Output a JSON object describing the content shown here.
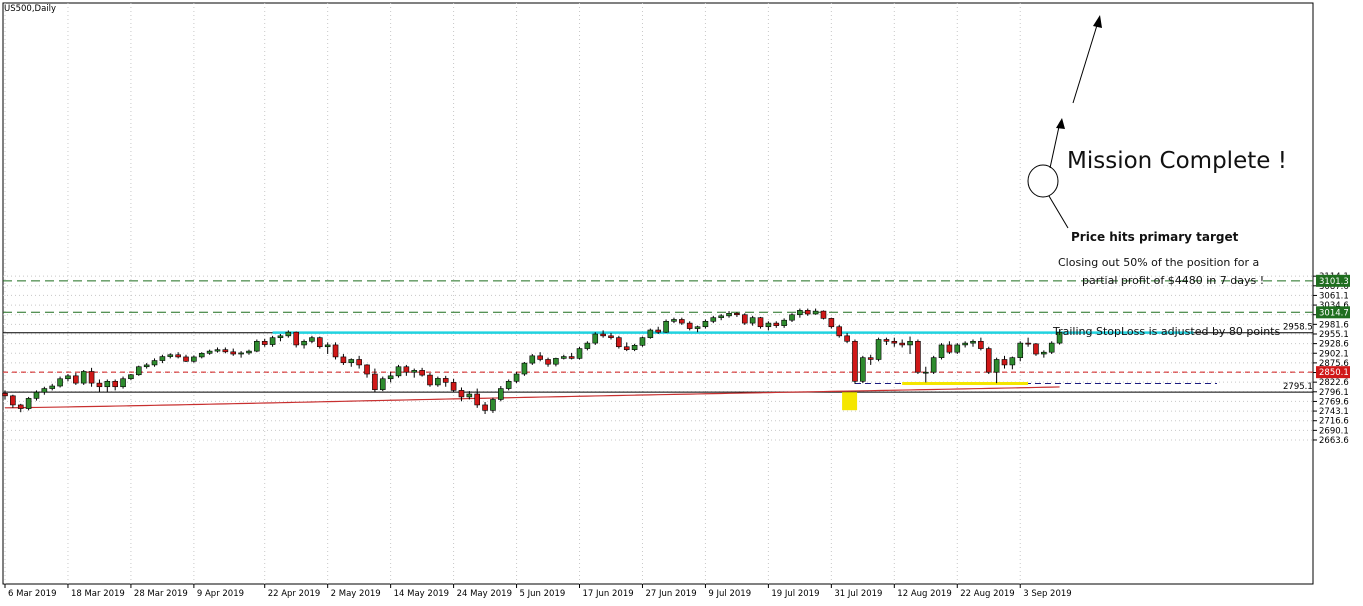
{
  "chart_data": {
    "type": "candlestick",
    "title": "US500,Daily",
    "ylim": [
      2640,
      3118
    ],
    "grid": true,
    "y_ticks": [
      3114.1,
      3087.6,
      3061.1,
      3034.6,
      3008.1,
      2981.6,
      2955.1,
      2928.6,
      2902.1,
      2875.6,
      2849.1,
      2822.6,
      2796.1,
      2769.6,
      2743.1,
      2716.6,
      2690.1,
      2663.6
    ],
    "x_ticks": [
      "6 Mar 2019",
      "18 Mar 2019",
      "28 Mar 2019",
      "9 Apr 2019",
      "22 Apr 2019",
      "2 May 2019",
      "14 May 2019",
      "24 May 2019",
      "5 Jun 2019",
      "17 Jun 2019",
      "27 Jun 2019",
      "9 Jul 2019",
      "19 Jul 2019",
      "31 Jul 2019",
      "12 Aug 2019",
      "22 Aug 2019",
      "3 Sep 2019"
    ],
    "x_tick_index": [
      0,
      8,
      16,
      24,
      33,
      41,
      49,
      57,
      65,
      73,
      81,
      89,
      97,
      105,
      113,
      121,
      129
    ],
    "colors": {
      "up": "#2e8b2e",
      "down": "#d01818",
      "wick": "#000000",
      "ma": "#c83030"
    },
    "candles": [
      [
        2792,
        2800,
        2775,
        2785
      ],
      [
        2785,
        2788,
        2752,
        2760
      ],
      [
        2760,
        2763,
        2740,
        2750
      ],
      [
        2750,
        2782,
        2745,
        2778
      ],
      [
        2778,
        2800,
        2772,
        2795
      ],
      [
        2795,
        2810,
        2788,
        2805
      ],
      [
        2805,
        2818,
        2800,
        2812
      ],
      [
        2812,
        2838,
        2808,
        2832
      ],
      [
        2832,
        2845,
        2825,
        2840
      ],
      [
        2840,
        2848,
        2815,
        2820
      ],
      [
        2820,
        2856,
        2815,
        2852
      ],
      [
        2852,
        2862,
        2810,
        2820
      ],
      [
        2820,
        2830,
        2795,
        2810
      ],
      [
        2810,
        2830,
        2795,
        2825
      ],
      [
        2825,
        2830,
        2800,
        2810
      ],
      [
        2810,
        2838,
        2805,
        2832
      ],
      [
        2832,
        2845,
        2828,
        2843
      ],
      [
        2843,
        2868,
        2840,
        2865
      ],
      [
        2865,
        2875,
        2860,
        2870
      ],
      [
        2870,
        2888,
        2865,
        2882
      ],
      [
        2882,
        2898,
        2875,
        2893
      ],
      [
        2893,
        2902,
        2888,
        2898
      ],
      [
        2898,
        2905,
        2888,
        2892
      ],
      [
        2892,
        2898,
        2878,
        2880
      ],
      [
        2880,
        2896,
        2876,
        2892
      ],
      [
        2892,
        2905,
        2888,
        2902
      ],
      [
        2902,
        2912,
        2898,
        2908
      ],
      [
        2908,
        2918,
        2904,
        2912
      ],
      [
        2912,
        2918,
        2902,
        2906
      ],
      [
        2906,
        2915,
        2895,
        2900
      ],
      [
        2900,
        2908,
        2890,
        2903
      ],
      [
        2903,
        2912,
        2898,
        2908
      ],
      [
        2908,
        2940,
        2905,
        2935
      ],
      [
        2935,
        2942,
        2920,
        2926
      ],
      [
        2926,
        2950,
        2920,
        2945
      ],
      [
        2945,
        2955,
        2935,
        2950
      ],
      [
        2950,
        2965,
        2945,
        2960
      ],
      [
        2960,
        2962,
        2918,
        2925
      ],
      [
        2925,
        2940,
        2915,
        2935
      ],
      [
        2935,
        2950,
        2930,
        2945
      ],
      [
        2945,
        2948,
        2915,
        2920
      ],
      [
        2920,
        2932,
        2900,
        2925
      ],
      [
        2925,
        2932,
        2885,
        2892
      ],
      [
        2892,
        2900,
        2870,
        2876
      ],
      [
        2876,
        2888,
        2865,
        2885
      ],
      [
        2885,
        2895,
        2860,
        2870
      ],
      [
        2870,
        2872,
        2835,
        2845
      ],
      [
        2845,
        2860,
        2795,
        2802
      ],
      [
        2802,
        2838,
        2798,
        2832
      ],
      [
        2832,
        2850,
        2822,
        2840
      ],
      [
        2840,
        2870,
        2835,
        2865
      ],
      [
        2865,
        2870,
        2840,
        2850
      ],
      [
        2850,
        2860,
        2835,
        2855
      ],
      [
        2855,
        2862,
        2838,
        2842
      ],
      [
        2842,
        2848,
        2810,
        2815
      ],
      [
        2815,
        2838,
        2810,
        2833
      ],
      [
        2833,
        2840,
        2810,
        2822
      ],
      [
        2822,
        2832,
        2795,
        2800
      ],
      [
        2800,
        2808,
        2770,
        2782
      ],
      [
        2782,
        2798,
        2775,
        2790
      ],
      [
        2790,
        2805,
        2752,
        2760
      ],
      [
        2760,
        2768,
        2735,
        2745
      ],
      [
        2745,
        2780,
        2738,
        2775
      ],
      [
        2775,
        2812,
        2770,
        2805
      ],
      [
        2805,
        2830,
        2800,
        2825
      ],
      [
        2825,
        2850,
        2820,
        2845
      ],
      [
        2845,
        2878,
        2840,
        2875
      ],
      [
        2875,
        2900,
        2870,
        2895
      ],
      [
        2895,
        2905,
        2880,
        2885
      ],
      [
        2885,
        2890,
        2865,
        2872
      ],
      [
        2872,
        2890,
        2866,
        2888
      ],
      [
        2888,
        2898,
        2885,
        2893
      ],
      [
        2893,
        2903,
        2885,
        2888
      ],
      [
        2888,
        2920,
        2885,
        2915
      ],
      [
        2915,
        2935,
        2910,
        2930
      ],
      [
        2930,
        2960,
        2925,
        2955
      ],
      [
        2955,
        2965,
        2945,
        2950
      ],
      [
        2950,
        2958,
        2940,
        2945
      ],
      [
        2945,
        2950,
        2915,
        2920
      ],
      [
        2920,
        2932,
        2908,
        2912
      ],
      [
        2912,
        2928,
        2908,
        2924
      ],
      [
        2924,
        2948,
        2920,
        2945
      ],
      [
        2945,
        2970,
        2942,
        2966
      ],
      [
        2966,
        2975,
        2955,
        2960
      ],
      [
        2960,
        2995,
        2958,
        2990
      ],
      [
        2990,
        3000,
        2985,
        2995
      ],
      [
        2995,
        3000,
        2980,
        2985
      ],
      [
        2985,
        2990,
        2965,
        2970
      ],
      [
        2970,
        2978,
        2960,
        2975
      ],
      [
        2975,
        2995,
        2970,
        2990
      ],
      [
        2990,
        3005,
        2985,
        3000
      ],
      [
        3000,
        3010,
        2993,
        3005
      ],
      [
        3005,
        3018,
        3000,
        3012
      ],
      [
        3012,
        3015,
        3002,
        3008
      ],
      [
        3008,
        3012,
        2980,
        2985
      ],
      [
        2985,
        3005,
        2978,
        3000
      ],
      [
        3000,
        3002,
        2970,
        2975
      ],
      [
        2975,
        2990,
        2965,
        2985
      ],
      [
        2985,
        2990,
        2972,
        2978
      ],
      [
        2978,
        2998,
        2972,
        2993
      ],
      [
        2993,
        3012,
        2988,
        3008
      ],
      [
        3008,
        3025,
        3000,
        3020
      ],
      [
        3020,
        3025,
        3005,
        3010
      ],
      [
        3010,
        3025,
        3008,
        3018
      ],
      [
        3018,
        3020,
        2995,
        2998
      ],
      [
        2998,
        3000,
        2970,
        2975
      ],
      [
        2975,
        2980,
        2945,
        2950
      ],
      [
        2950,
        2958,
        2930,
        2935
      ],
      [
        2935,
        2940,
        2818,
        2825
      ],
      [
        2825,
        2895,
        2820,
        2890
      ],
      [
        2890,
        2898,
        2870,
        2885
      ],
      [
        2885,
        2945,
        2880,
        2940
      ],
      [
        2940,
        2945,
        2925,
        2935
      ],
      [
        2935,
        2945,
        2920,
        2930
      ],
      [
        2930,
        2940,
        2918,
        2925
      ],
      [
        2925,
        2948,
        2900,
        2935
      ],
      [
        2935,
        2940,
        2845,
        2850
      ],
      [
        2850,
        2865,
        2822,
        2850
      ],
      [
        2850,
        2895,
        2845,
        2890
      ],
      [
        2890,
        2930,
        2885,
        2925
      ],
      [
        2925,
        2935,
        2900,
        2905
      ],
      [
        2905,
        2930,
        2900,
        2925
      ],
      [
        2925,
        2935,
        2918,
        2930
      ],
      [
        2930,
        2940,
        2920,
        2935
      ],
      [
        2935,
        2945,
        2910,
        2915
      ],
      [
        2915,
        2920,
        2845,
        2850
      ],
      [
        2850,
        2890,
        2820,
        2885
      ],
      [
        2885,
        2895,
        2860,
        2870
      ],
      [
        2870,
        2893,
        2858,
        2890
      ],
      [
        2890,
        2935,
        2880,
        2930
      ],
      [
        2930,
        2945,
        2920,
        2928
      ],
      [
        2928,
        2930,
        2895,
        2900
      ],
      [
        2900,
        2910,
        2890,
        2905
      ],
      [
        2905,
        2935,
        2900,
        2930
      ],
      [
        2930,
        2965,
        2926,
        2960
      ]
    ],
    "ma_start": 2752,
    "ma_end": 2810,
    "series_labels": [
      {
        "text": "3101.3",
        "value": 3101.3,
        "color": "#1f6e1f"
      },
      {
        "text": "3014.7",
        "value": 3014.7,
        "color": "#1f6e1f"
      },
      {
        "text": "2958.5",
        "value": 2958.5,
        "color": "#ffffff"
      },
      {
        "text": "2850.1",
        "value": 2850.1,
        "color": "#d01818"
      },
      {
        "text": "2795.1",
        "value": 2795.1,
        "color": "#ffffff"
      }
    ],
    "lines": {
      "target2": 3101.3,
      "target1": 3014.7,
      "resistance": 2958.5,
      "resistance_cyan": 2959,
      "stoploss": 2850.1,
      "support": 2795.1,
      "blue_dash": 2819
    },
    "annotations": {
      "mission": "Mission Complete !",
      "primary": "Price hits primary target",
      "closing_line1": "Closing out 50% of the position for a",
      "closing_line2": "partial profit of $4480 in 7 days !",
      "trailing": "Trailing StopLoss is adjusted by 80 points"
    }
  }
}
